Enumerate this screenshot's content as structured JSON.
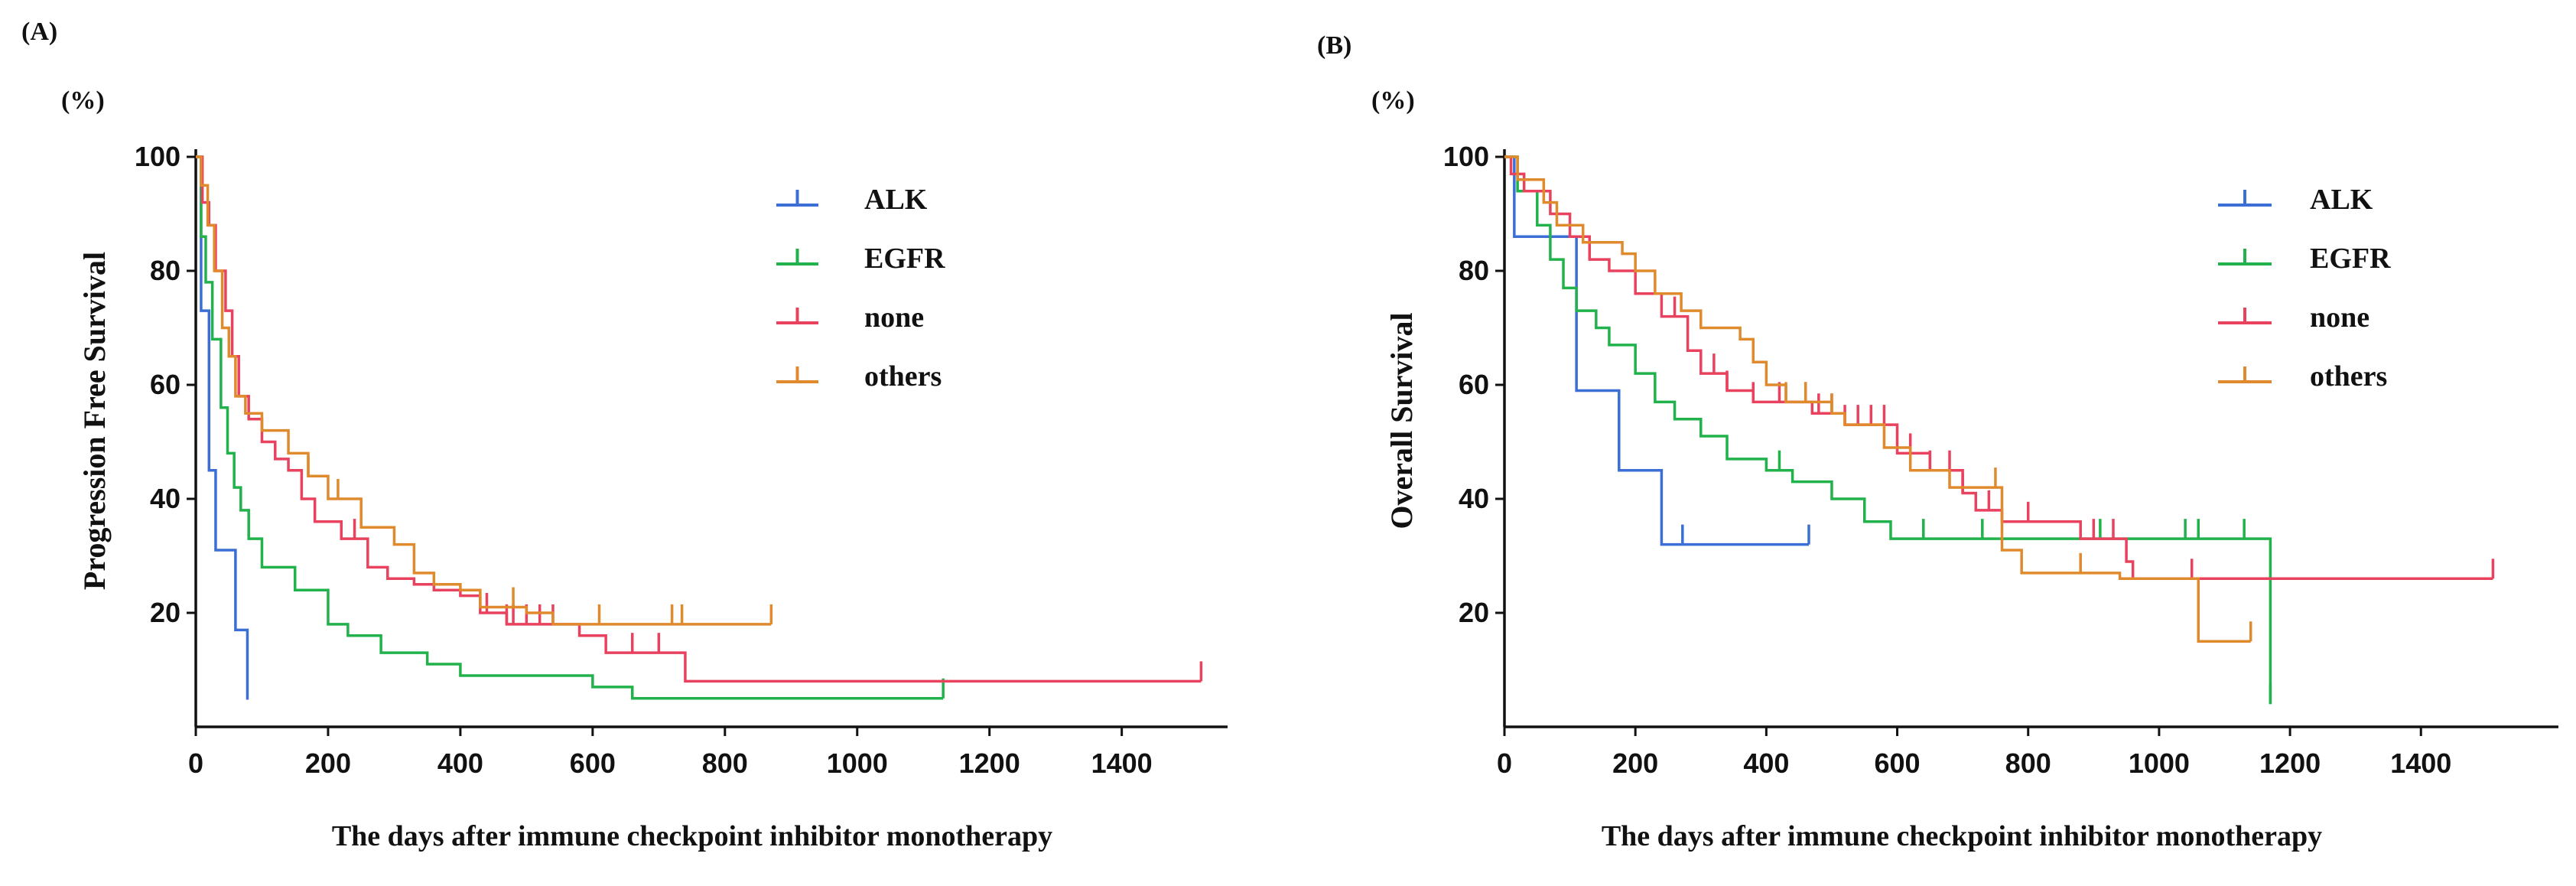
{
  "chart_data": [
    {
      "type": "line",
      "panel": "(A)",
      "unit": "(%)",
      "xlabel": "The days after immune checkpoint inhibitor monotherapy",
      "ylabel": "Progression Free Survival",
      "xlim": [
        0,
        1560
      ],
      "ylim": [
        0,
        100
      ],
      "x_ticks": [
        0,
        200,
        400,
        600,
        800,
        1000,
        1200,
        1400
      ],
      "y_ticks": [
        20,
        40,
        60,
        80,
        100
      ],
      "legend_position": "top-right",
      "series": [
        {
          "name": "ALK",
          "color": "#3b6fd6",
          "steps": [
            [
              0,
              100
            ],
            [
              8,
              73
            ],
            [
              20,
              45
            ],
            [
              30,
              31
            ],
            [
              60,
              17
            ],
            [
              78,
              5
            ]
          ],
          "end": 80,
          "censor": []
        },
        {
          "name": "EGFR",
          "color": "#22b24c",
          "steps": [
            [
              0,
              100
            ],
            [
              8,
              86
            ],
            [
              15,
              78
            ],
            [
              25,
              68
            ],
            [
              38,
              56
            ],
            [
              48,
              48
            ],
            [
              58,
              42
            ],
            [
              68,
              38
            ],
            [
              80,
              33
            ],
            [
              100,
              28
            ],
            [
              150,
              24
            ],
            [
              200,
              18
            ],
            [
              230,
              16
            ],
            [
              280,
              13
            ],
            [
              350,
              11
            ],
            [
              400,
              9
            ],
            [
              600,
              7
            ],
            [
              660,
              5
            ]
          ],
          "end": 1130,
          "censor": [
            1130
          ]
        },
        {
          "name": "none",
          "color": "#e8425f",
          "steps": [
            [
              0,
              100
            ],
            [
              10,
              92
            ],
            [
              20,
              88
            ],
            [
              30,
              80
            ],
            [
              45,
              73
            ],
            [
              55,
              65
            ],
            [
              65,
              58
            ],
            [
              80,
              54
            ],
            [
              100,
              50
            ],
            [
              120,
              47
            ],
            [
              140,
              45
            ],
            [
              160,
              40
            ],
            [
              180,
              36
            ],
            [
              220,
              33
            ],
            [
              260,
              28
            ],
            [
              290,
              26
            ],
            [
              330,
              25
            ],
            [
              360,
              24
            ],
            [
              400,
              23
            ],
            [
              430,
              20
            ],
            [
              470,
              18
            ],
            [
              580,
              16
            ],
            [
              620,
              13
            ],
            [
              740,
              8
            ]
          ],
          "end": 1520,
          "censor": [
            240,
            440,
            470,
            480,
            500,
            520,
            540,
            660,
            700,
            1520
          ]
        },
        {
          "name": "others",
          "color": "#e08a2e",
          "steps": [
            [
              0,
              100
            ],
            [
              8,
              95
            ],
            [
              18,
              88
            ],
            [
              28,
              80
            ],
            [
              40,
              70
            ],
            [
              50,
              65
            ],
            [
              60,
              58
            ],
            [
              75,
              55
            ],
            [
              100,
              52
            ],
            [
              140,
              48
            ],
            [
              170,
              44
            ],
            [
              200,
              40
            ],
            [
              250,
              35
            ],
            [
              300,
              32
            ],
            [
              330,
              27
            ],
            [
              360,
              25
            ],
            [
              400,
              24
            ],
            [
              430,
              21
            ],
            [
              500,
              20
            ],
            [
              540,
              18
            ]
          ],
          "end": 870,
          "censor": [
            170,
            215,
            480,
            610,
            720,
            735,
            870
          ]
        }
      ]
    },
    {
      "type": "line",
      "panel": "(B)",
      "unit": "(%)",
      "xlabel": "The days after immune checkpoint inhibitor monotherapy",
      "ylabel": "Overall Survival",
      "xlim": [
        0,
        1610
      ],
      "ylim": [
        0,
        100
      ],
      "x_ticks": [
        0,
        200,
        400,
        600,
        800,
        1000,
        1200,
        1400
      ],
      "y_ticks": [
        20,
        40,
        60,
        80,
        100
      ],
      "legend_position": "top-right",
      "series": [
        {
          "name": "ALK",
          "color": "#3b6fd6",
          "steps": [
            [
              0,
              100
            ],
            [
              15,
              86
            ],
            [
              70,
              86
            ],
            [
              110,
              59
            ],
            [
              175,
              45
            ],
            [
              240,
              32
            ]
          ],
          "end": 465,
          "censor": [
            272,
            465
          ]
        },
        {
          "name": "EGFR",
          "color": "#22b24c",
          "steps": [
            [
              0,
              100
            ],
            [
              20,
              94
            ],
            [
              50,
              88
            ],
            [
              70,
              82
            ],
            [
              90,
              77
            ],
            [
              110,
              73
            ],
            [
              140,
              70
            ],
            [
              160,
              67
            ],
            [
              200,
              62
            ],
            [
              230,
              57
            ],
            [
              260,
              54
            ],
            [
              300,
              51
            ],
            [
              340,
              47
            ],
            [
              400,
              45
            ],
            [
              440,
              43
            ],
            [
              500,
              40
            ],
            [
              550,
              36
            ],
            [
              590,
              33
            ],
            [
              1170,
              4
            ]
          ],
          "end": 1170,
          "censor": [
            420,
            640,
            730,
            910,
            1040,
            1060,
            1130,
            1170
          ]
        },
        {
          "name": "none",
          "color": "#e8425f",
          "steps": [
            [
              0,
              100
            ],
            [
              10,
              97
            ],
            [
              30,
              94
            ],
            [
              70,
              90
            ],
            [
              100,
              86
            ],
            [
              130,
              82
            ],
            [
              160,
              80
            ],
            [
              200,
              76
            ],
            [
              240,
              72
            ],
            [
              280,
              66
            ],
            [
              300,
              62
            ],
            [
              340,
              59
            ],
            [
              380,
              57
            ],
            [
              470,
              55
            ],
            [
              520,
              53
            ],
            [
              600,
              48
            ],
            [
              650,
              45
            ],
            [
              700,
              41
            ],
            [
              720,
              38
            ],
            [
              760,
              36
            ],
            [
              880,
              33
            ],
            [
              950,
              29
            ],
            [
              960,
              26
            ]
          ],
          "end": 1510,
          "censor": [
            260,
            320,
            340,
            380,
            420,
            460,
            480,
            500,
            520,
            540,
            560,
            580,
            620,
            650,
            680,
            700,
            740,
            800,
            900,
            930,
            1050,
            1510
          ]
        },
        {
          "name": "others",
          "color": "#e08a2e",
          "steps": [
            [
              0,
              100
            ],
            [
              20,
              96
            ],
            [
              60,
              92
            ],
            [
              80,
              88
            ],
            [
              120,
              85
            ],
            [
              180,
              83
            ],
            [
              200,
              80
            ],
            [
              230,
              76
            ],
            [
              270,
              73
            ],
            [
              300,
              70
            ],
            [
              360,
              68
            ],
            [
              380,
              64
            ],
            [
              400,
              60
            ],
            [
              430,
              57
            ],
            [
              500,
              55
            ],
            [
              520,
              53
            ],
            [
              580,
              49
            ],
            [
              620,
              45
            ],
            [
              680,
              42
            ],
            [
              760,
              31
            ],
            [
              790,
              27
            ],
            [
              940,
              26
            ],
            [
              1060,
              15
            ]
          ],
          "end": 1140,
          "censor": [
            430,
            460,
            500,
            750,
            880,
            1140
          ]
        }
      ]
    }
  ]
}
